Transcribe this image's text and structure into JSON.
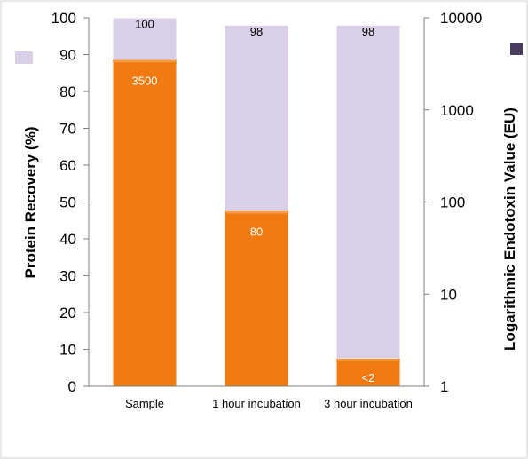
{
  "chart_data": {
    "type": "bar",
    "categories": [
      "Sample",
      "1 hour incubation",
      "3 hour incubation"
    ],
    "series": [
      {
        "axis": "left",
        "values": [
          100,
          98,
          98
        ],
        "labels": [
          "100",
          "98",
          "98"
        ],
        "color": "#d9cfe6"
      },
      {
        "axis": "right",
        "values": [
          3500,
          80,
          2
        ],
        "labels": [
          "3500",
          "80",
          "<2"
        ],
        "color": "#f07a10"
      }
    ],
    "ylabel": "Protein Recovery (%)",
    "y2label": "Logarithmic Endotoxin Value (EU)",
    "ylim": [
      0,
      100
    ],
    "yticks": [
      "0",
      "10",
      "20",
      "30",
      "40",
      "50",
      "60",
      "70",
      "80",
      "90",
      "100"
    ],
    "y2lim": [
      1,
      10000
    ],
    "y2scale": "log",
    "y2ticks": [
      "1",
      "10",
      "100",
      "1000",
      "10000"
    ],
    "legend": "top-left and top-right swatches, no text",
    "legend_colors": [
      "#d9cfe6",
      "#4b3d5e"
    ],
    "grid": false
  }
}
